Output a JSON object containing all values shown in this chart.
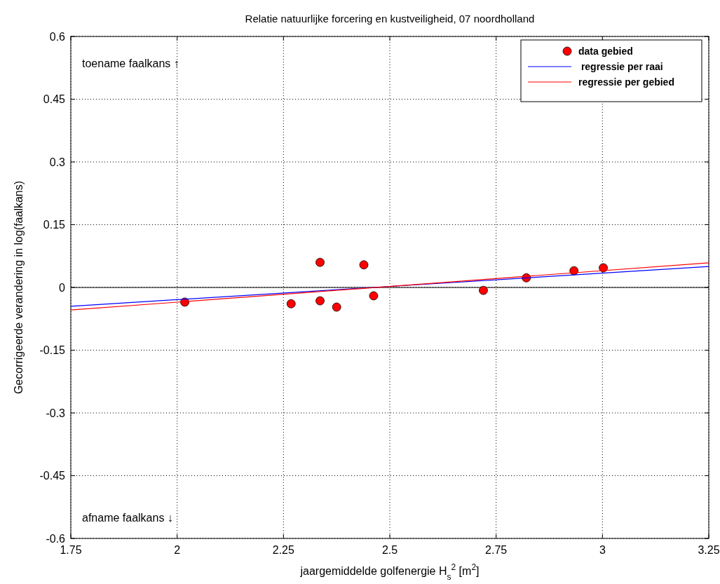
{
  "chart_data": {
    "type": "scatter",
    "title": "Relatie natuurlijke forcering en kustveiligheid, 07 noordholland",
    "xlabel": "jaargemiddelde golfenergie H$_{s}$$^{2}$ [m$^{2}$]",
    "ylabel": "Gecorrigeerde verandering in log(faalkans)",
    "xlim": [
      1.75,
      3.25
    ],
    "xticks": [
      1.75,
      2,
      2.25,
      2.5,
      2.75,
      3,
      3.25
    ],
    "ylim": [
      -0.6,
      0.6
    ],
    "yticks": [
      -0.6,
      -0.45,
      -0.3,
      -0.15,
      0,
      0.15,
      0.3,
      0.45,
      0.6
    ],
    "grid": true,
    "legend": "top right",
    "ref_lines": [
      {
        "axis": "y",
        "value": 0,
        "color": "#000000"
      }
    ],
    "annotations": [
      "toename faalkans ↑",
      "afname faalkans ↓"
    ],
    "series": [
      {
        "name": "data gebied",
        "marker": "circle",
        "color": "#ff0000",
        "x": [
          2.018,
          2.268,
          2.336,
          2.336,
          2.375,
          2.439,
          2.462,
          2.72,
          2.821,
          2.933,
          3.002
        ],
        "values": [
          -0.035,
          -0.039,
          0.06,
          -0.032,
          -0.047,
          0.054,
          -0.02,
          -0.007,
          0.023,
          0.04,
          0.047
        ]
      },
      {
        "name": " regressie per raai",
        "type": "line",
        "color": "#0000ff",
        "x": [
          1.75,
          3.25
        ],
        "values": [
          -0.045,
          0.05
        ]
      },
      {
        "name": "regressie per gebied",
        "type": "line",
        "color": "#ff0000",
        "x": [
          1.75,
          3.25
        ],
        "values": [
          -0.054,
          0.059
        ]
      }
    ]
  }
}
